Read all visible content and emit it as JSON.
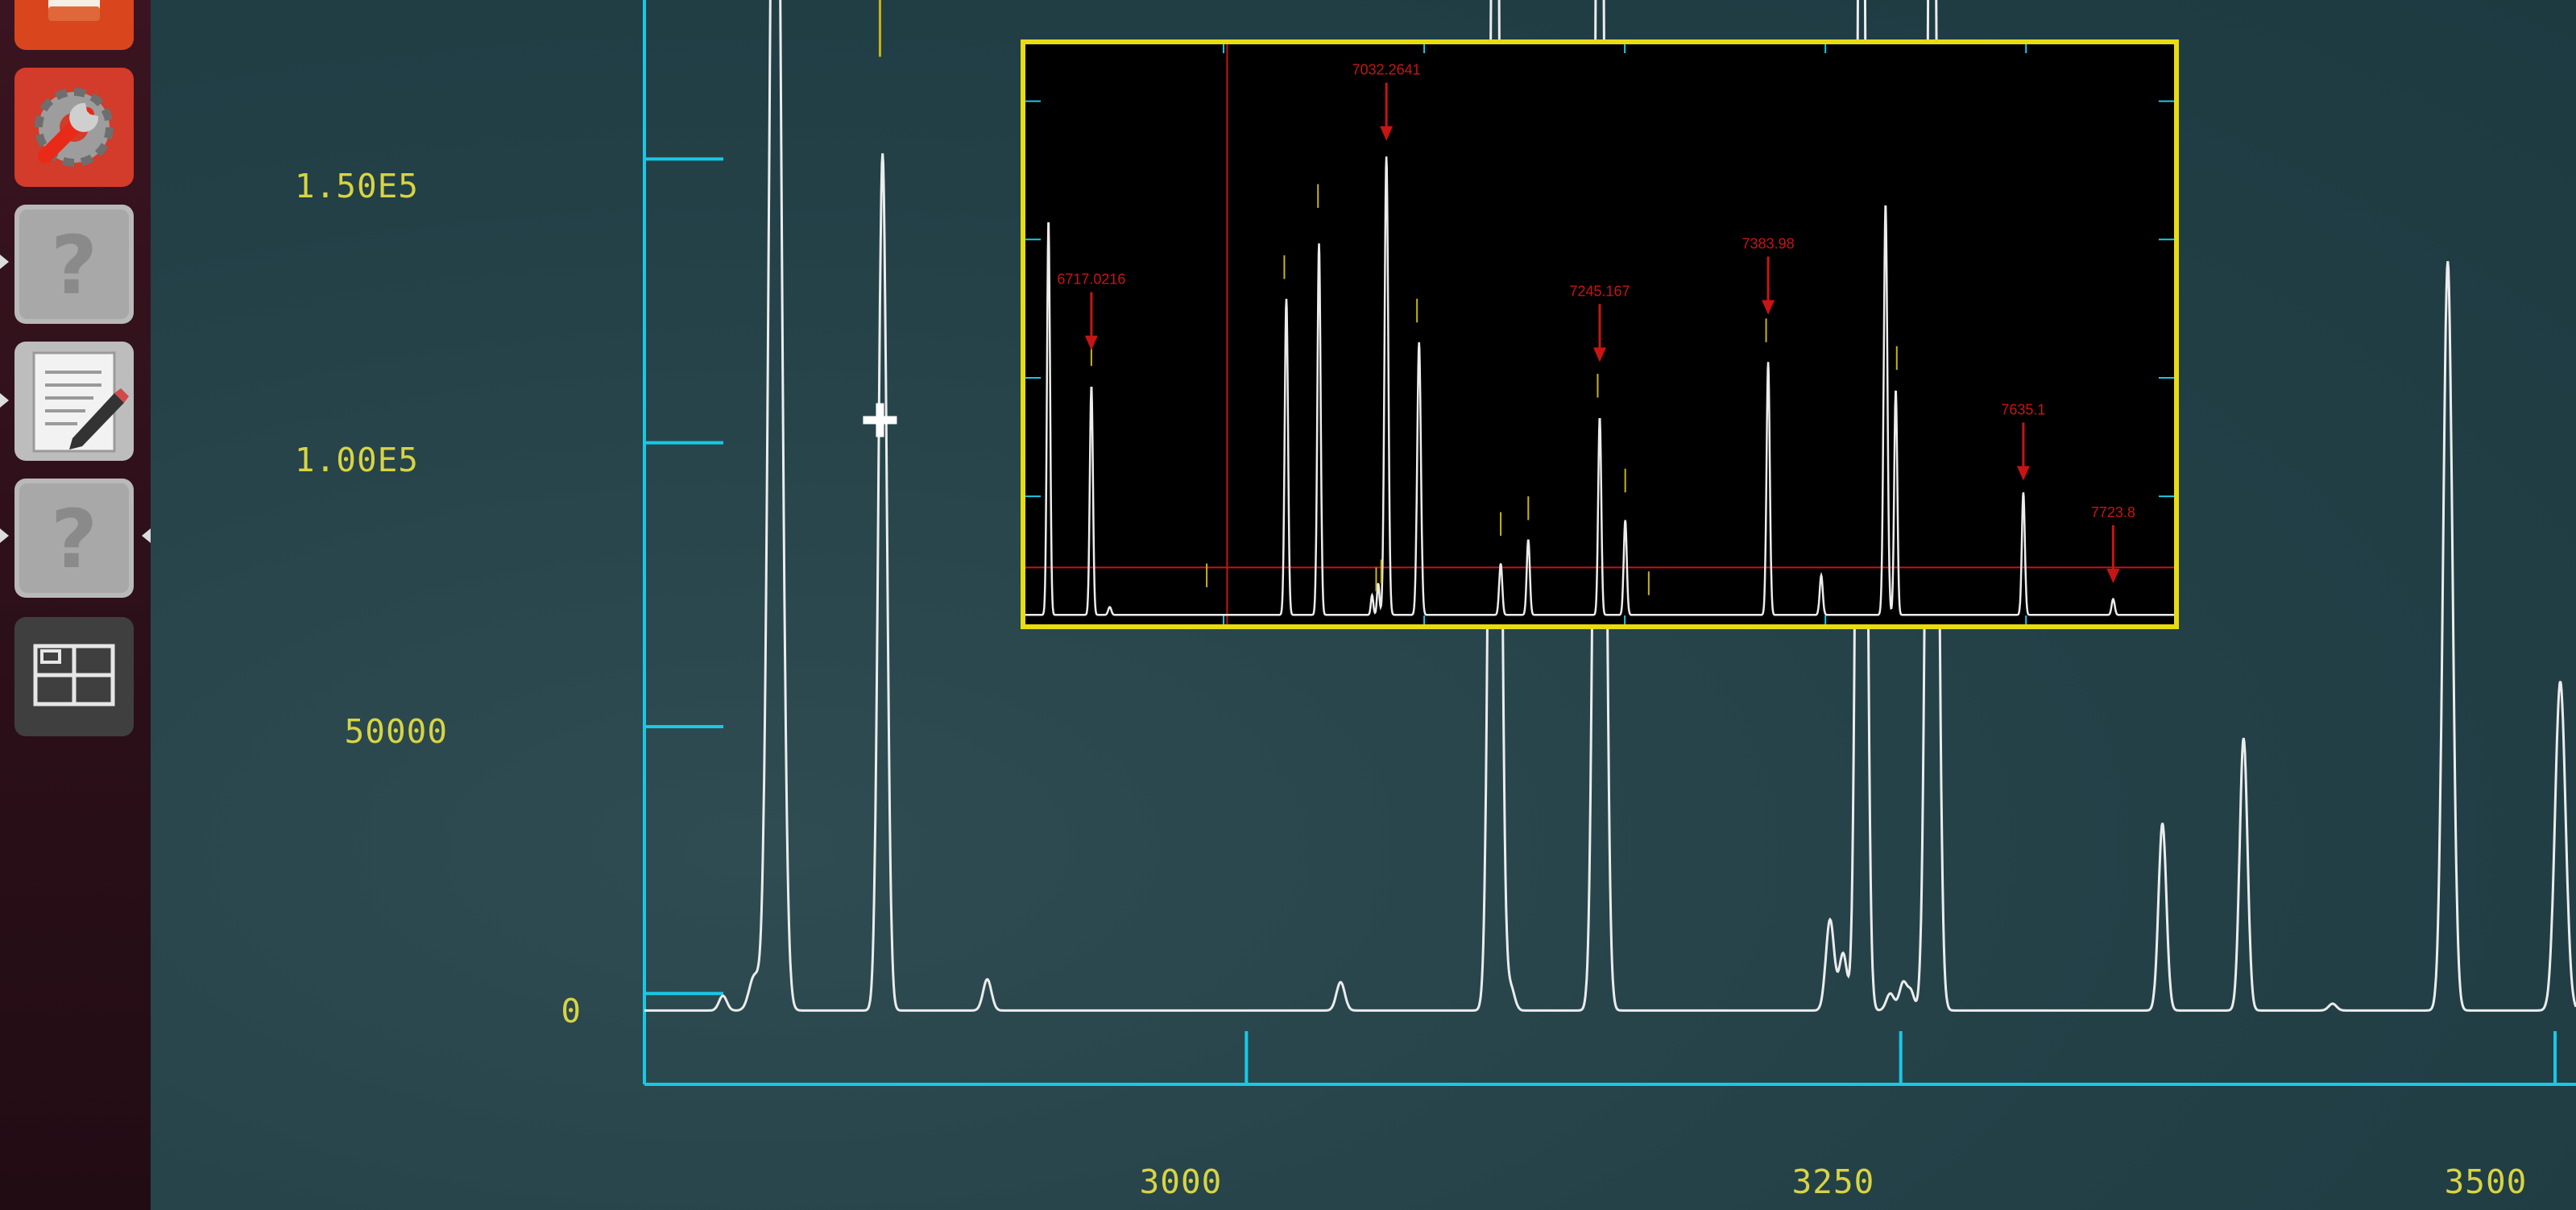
{
  "chart_data": [
    {
      "type": "line",
      "y_ticks": [
        {
          "value": 0,
          "label": "0"
        },
        {
          "value": 50000,
          "label": "50000"
        },
        {
          "value": 100000,
          "label": "1.00E5"
        },
        {
          "value": 150000,
          "label": "1.50E5"
        }
      ],
      "x_ticks": [
        {
          "value": 3000,
          "label": "3000"
        },
        {
          "value": 3250,
          "label": "3250"
        },
        {
          "value": 3500,
          "label": "3500"
        }
      ],
      "xlim": [
        2770,
        3508
      ],
      "ylim": [
        -13000,
        178000
      ],
      "baseline": 0,
      "peaks": [
        {
          "x": 2800,
          "y": 2600,
          "w": 1.5
        },
        {
          "x": 2812,
          "y": 6000,
          "w": 2
        },
        {
          "x": 2820,
          "y": 260000,
          "w": 2.2
        },
        {
          "x": 2861,
          "y": 151000,
          "w": 1.6
        },
        {
          "x": 2901,
          "y": 5500,
          "w": 1.6
        },
        {
          "x": 3036,
          "y": 5000,
          "w": 1.6
        },
        {
          "x": 3095,
          "y": 260000,
          "w": 1.8
        },
        {
          "x": 3101,
          "y": 4000,
          "w": 1.5
        },
        {
          "x": 3135,
          "y": 260000,
          "w": 1.8
        },
        {
          "x": 3223,
          "y": 16000,
          "w": 1.6
        },
        {
          "x": 3228,
          "y": 10000,
          "w": 1.5
        },
        {
          "x": 3235,
          "y": 260000,
          "w": 1.6
        },
        {
          "x": 3246,
          "y": 3000,
          "w": 1.5
        },
        {
          "x": 3251,
          "y": 5000,
          "w": 1.5
        },
        {
          "x": 3254,
          "y": 3000,
          "w": 1.2
        },
        {
          "x": 3262,
          "y": 260000,
          "w": 1.8
        },
        {
          "x": 3350,
          "y": 33000,
          "w": 1.5
        },
        {
          "x": 3381,
          "y": 48000,
          "w": 1.5
        },
        {
          "x": 3415,
          "y": 1200,
          "w": 1.5
        },
        {
          "x": 3459,
          "y": 132000,
          "w": 1.8
        },
        {
          "x": 3502,
          "y": 58000,
          "w": 2
        }
      ],
      "markers": [
        {
          "x": 2860,
          "y1": 168000,
          "y2": 180000
        }
      ],
      "cursor": {
        "x": 2860,
        "y": 104000
      }
    },
    {
      "type": "line",
      "xlim": [
        6650,
        7780
      ],
      "ylim": [
        -0.03,
        1.45
      ],
      "baseline": 0,
      "threshold_line": {
        "y": 0.12
      },
      "cursor_line": {
        "x": 6850
      },
      "peaks": [
        {
          "x": 6675,
          "y": 1.0,
          "w": 1.5
        },
        {
          "x": 6717,
          "y": 0.58,
          "w": 1.5
        },
        {
          "x": 6735,
          "y": 0.02,
          "w": 1.5
        },
        {
          "x": 6908,
          "y": 0.8,
          "w": 1.6
        },
        {
          "x": 6940,
          "y": 0.94,
          "w": 1.6
        },
        {
          "x": 6992,
          "y": 0.05,
          "w": 1.2
        },
        {
          "x": 6998,
          "y": 0.08,
          "w": 1.2
        },
        {
          "x": 7006,
          "y": 1.16,
          "w": 1.8
        },
        {
          "x": 7038,
          "y": 0.69,
          "w": 1.8
        },
        {
          "x": 7118,
          "y": 0.13,
          "w": 1.5
        },
        {
          "x": 7145,
          "y": 0.19,
          "w": 1.5
        },
        {
          "x": 7215,
          "y": 0.5,
          "w": 1.5
        },
        {
          "x": 7240,
          "y": 0.24,
          "w": 1.5
        },
        {
          "x": 7380,
          "y": 0.64,
          "w": 1.6
        },
        {
          "x": 7432,
          "y": 0.1,
          "w": 1.5
        },
        {
          "x": 7495,
          "y": 1.04,
          "w": 1.8
        },
        {
          "x": 7505,
          "y": 0.57,
          "w": 1.5
        },
        {
          "x": 7630,
          "y": 0.31,
          "w": 1.5
        },
        {
          "x": 7718,
          "y": 0.04,
          "w": 1.5
        }
      ],
      "markers": [
        {
          "x": 6717,
          "y1": 0.63,
          "y2": 0.69
        },
        {
          "x": 6830,
          "y1": 0.07,
          "y2": 0.13
        },
        {
          "x": 6906,
          "y1": 0.85,
          "y2": 0.91
        },
        {
          "x": 6939,
          "y1": 1.03,
          "y2": 1.09
        },
        {
          "x": 6996,
          "y1": 0.06,
          "y2": 0.12
        },
        {
          "x": 7001,
          "y1": 0.08,
          "y2": 0.14
        },
        {
          "x": 7036,
          "y1": 0.74,
          "y2": 0.8
        },
        {
          "x": 7118,
          "y1": 0.2,
          "y2": 0.26
        },
        {
          "x": 7145,
          "y1": 0.24,
          "y2": 0.3
        },
        {
          "x": 7213,
          "y1": 0.55,
          "y2": 0.61
        },
        {
          "x": 7240,
          "y1": 0.31,
          "y2": 0.37
        },
        {
          "x": 7263,
          "y1": 0.05,
          "y2": 0.11
        },
        {
          "x": 7378,
          "y1": 0.69,
          "y2": 0.75
        },
        {
          "x": 7506,
          "y1": 0.62,
          "y2": 0.68
        }
      ],
      "annotations": [
        {
          "label": "6717.0216",
          "x": 6717,
          "y": 0.67
        },
        {
          "label": "7032.2641",
          "x": 7006,
          "y": 1.2
        },
        {
          "label": "7245.167",
          "x": 7215,
          "y": 0.64
        },
        {
          "label": "7383.98",
          "x": 7380,
          "y": 0.76
        },
        {
          "label": "7635.1",
          "x": 7630,
          "y": 0.34
        },
        {
          "label": "7723.8",
          "x": 7718,
          "y": 0.08
        }
      ]
    }
  ],
  "launcher": {
    "items": [
      {
        "name": "ubuntu-software-icon"
      },
      {
        "name": "system-settings-icon"
      },
      {
        "name": "unknown-app-icon"
      },
      {
        "name": "text-editor-icon"
      },
      {
        "name": "unknown-app-icon"
      },
      {
        "name": "workspace-switcher-icon"
      }
    ]
  },
  "colors": {
    "axis": "#19c8e6",
    "tick_label": "#d8d442",
    "trace": "#ececec",
    "marker": "#c8b414",
    "inset_frame": "#e8dc10",
    "annotation": "#c81414"
  }
}
